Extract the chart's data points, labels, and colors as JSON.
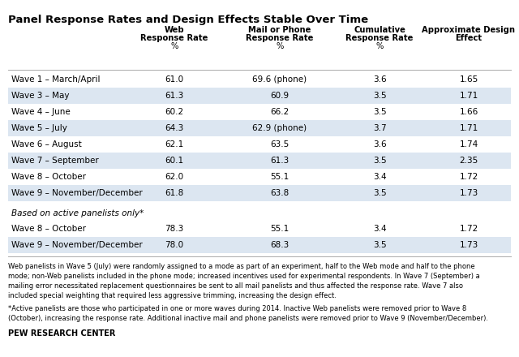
{
  "title": "Panel Response Rates and Design Effects Stable Over Time",
  "col_headers_line1": [
    "",
    "Web",
    "Mail or Phone",
    "Cumulative",
    "Approximate Design"
  ],
  "col_headers_line2": [
    "",
    "Response Rate",
    "Response Rate",
    "Response Rate",
    "Effect"
  ],
  "col_headers_line3": [
    "",
    "%",
    "%",
    "%",
    ""
  ],
  "main_rows": [
    [
      "Wave 1 – March/April",
      "61.0",
      "69.6 (phone)",
      "3.6",
      "1.65"
    ],
    [
      "Wave 3 – May",
      "61.3",
      "60.9",
      "3.5",
      "1.71"
    ],
    [
      "Wave 4 – June",
      "60.2",
      "66.2",
      "3.5",
      "1.66"
    ],
    [
      "Wave 5 – July",
      "64.3",
      "62.9 (phone)",
      "3.7",
      "1.71"
    ],
    [
      "Wave 6 – August",
      "62.1",
      "63.5",
      "3.6",
      "1.74"
    ],
    [
      "Wave 7 – September",
      "60.1",
      "61.3",
      "3.5",
      "2.35"
    ],
    [
      "Wave 8 – October",
      "62.0",
      "55.1",
      "3.4",
      "1.72"
    ],
    [
      "Wave 9 – November/December",
      "61.8",
      "63.8",
      "3.5",
      "1.73"
    ]
  ],
  "section_label": "Based on active panelists only*",
  "active_rows": [
    [
      "Wave 8 – October",
      "78.3",
      "55.1",
      "3.4",
      "1.72"
    ],
    [
      "Wave 9 – November/December",
      "78.0",
      "68.3",
      "3.5",
      "1.73"
    ]
  ],
  "footnote1": "Web panelists in Wave 5 (July) were randomly assigned to a mode as part of an experiment, half to the Web mode and half to the phone\nmode; non-Web panelists included in the phone mode; increased incentives used for experimental respondents. In Wave 7 (September) a\nmailing error necessitated replacement questionnaires be sent to all mail panelists and thus affected the response rate. Wave 7 also\nincluded special weighting that required less aggressive trimming, increasing the design effect.",
  "footnote2": "*Active panelists are those who participated in one or more waves during 2014. Inactive Web panelists were removed prior to Wave 8\n(October), increasing the response rate. Additional inactive mail and phone panelists were removed prior to Wave 9 (November/December).",
  "source": "PEW RESEARCH CENTER",
  "bg_color_shaded": "#dce6f1",
  "bg_color_plain": "#ffffff",
  "text_color": "#000000",
  "line_color": "#aaaaaa"
}
